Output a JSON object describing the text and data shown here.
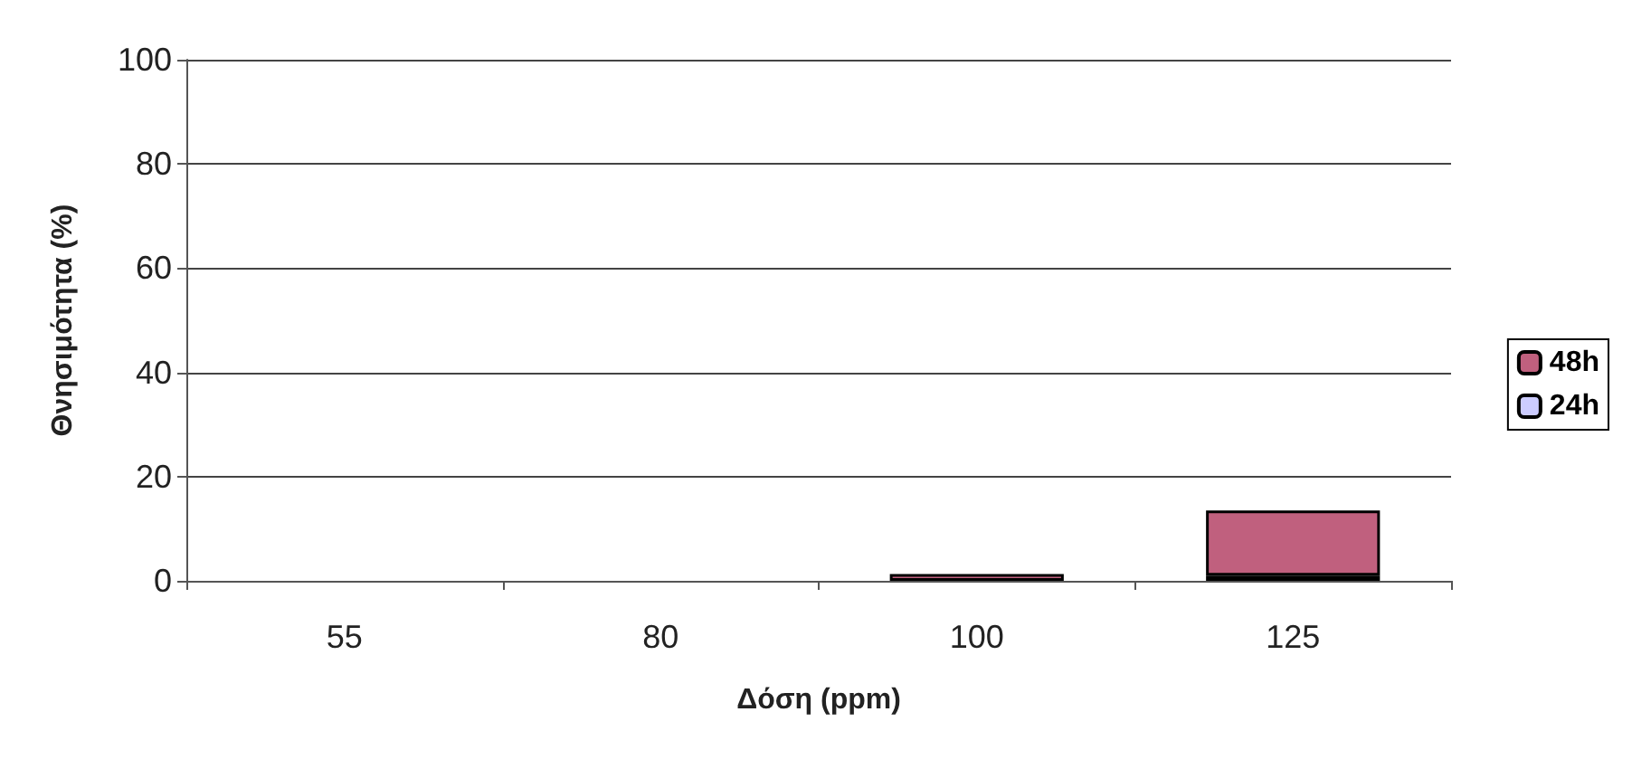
{
  "chart_data": {
    "type": "bar",
    "stacked": true,
    "xlabel": "Δόση (ppm)",
    "ylabel": "Θνησιμότητα (%)",
    "categories": [
      "55",
      "80",
      "100",
      "125"
    ],
    "series": [
      {
        "name": "24h",
        "color": "#ccccff",
        "values": [
          0,
          0,
          0,
          1
        ]
      },
      {
        "name": "48h",
        "color": "#c0607e",
        "values": [
          0,
          0,
          1.3,
          12.5
        ]
      }
    ],
    "ylim": [
      0,
      100
    ],
    "yticks": [
      0,
      20,
      40,
      60,
      80,
      100
    ],
    "grid": "y",
    "legend": "right"
  }
}
